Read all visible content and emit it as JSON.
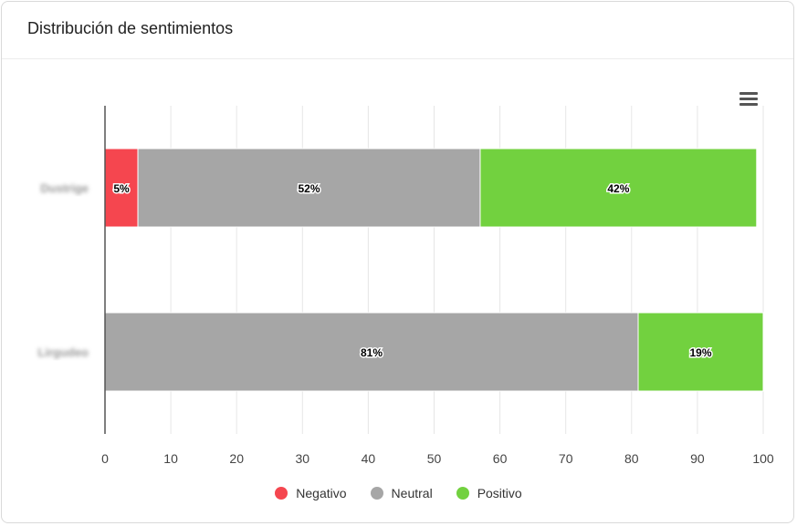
{
  "card": {
    "title": "Distribución de sentimientos"
  },
  "toolbar": {
    "menu_icon": "hamburger-menu-icon"
  },
  "chart_data": {
    "type": "bar",
    "orientation": "horizontal",
    "stacked": true,
    "categories": [
      "Dustrige",
      "Lirgudeo"
    ],
    "series": [
      {
        "name": "Negativo",
        "color": "#f5464f",
        "values": [
          5,
          0
        ],
        "labels": [
          "5%",
          ""
        ]
      },
      {
        "name": "Neutral",
        "color": "#a6a6a6",
        "values": [
          52,
          81
        ],
        "labels": [
          "52%",
          "81%"
        ]
      },
      {
        "name": "Positivo",
        "color": "#72d13f",
        "values": [
          42,
          19
        ],
        "labels": [
          "42%",
          "19%"
        ]
      }
    ],
    "xlim": [
      0,
      100
    ],
    "xticks": [
      0,
      10,
      20,
      30,
      40,
      50,
      60,
      70,
      80,
      90,
      100
    ],
    "grid": true,
    "legend_position": "bottom"
  }
}
